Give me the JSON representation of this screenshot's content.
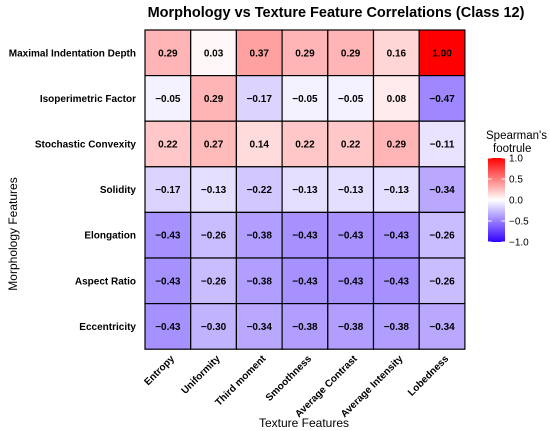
{
  "chart_data": {
    "type": "heatmap",
    "title": "Morphology vs Texture Feature Correlations (Class 12)",
    "xlabel": "Texture Features",
    "ylabel": "Morphology Features",
    "x_categories": [
      "Entropy",
      "Uniformity",
      "Third moment",
      "Smoothness",
      "Average Contrast",
      "Average Intensity",
      "Lobedness"
    ],
    "y_categories": [
      "Maximal Indentation Depth",
      "Isoperimetric Factor",
      "Stochastic Convexity",
      "Solidity",
      "Elongation",
      "Aspect Ratio",
      "Eccentricity"
    ],
    "values": [
      [
        0.29,
        0.03,
        0.37,
        0.29,
        0.29,
        0.16,
        1.0
      ],
      [
        -0.05,
        0.29,
        -0.17,
        -0.05,
        -0.05,
        0.08,
        -0.47
      ],
      [
        0.22,
        0.27,
        0.14,
        0.22,
        0.22,
        0.29,
        -0.11
      ],
      [
        -0.17,
        -0.13,
        -0.22,
        -0.13,
        -0.13,
        -0.13,
        -0.34
      ],
      [
        -0.43,
        -0.26,
        -0.38,
        -0.43,
        -0.43,
        -0.43,
        -0.26
      ],
      [
        -0.43,
        -0.26,
        -0.38,
        -0.43,
        -0.43,
        -0.43,
        -0.26
      ],
      [
        -0.43,
        -0.3,
        -0.34,
        -0.38,
        -0.38,
        -0.38,
        -0.34
      ]
    ],
    "value_labels": [
      [
        "0.29",
        "0.03",
        "0.37",
        "0.29",
        "0.29",
        "0.16",
        "1.00"
      ],
      [
        "−0.05",
        "0.29",
        "−0.17",
        "−0.05",
        "−0.05",
        "0.08",
        "−0.47"
      ],
      [
        "0.22",
        "0.27",
        "0.14",
        "0.22",
        "0.22",
        "0.29",
        "−0.11"
      ],
      [
        "−0.17",
        "−0.13",
        "−0.22",
        "−0.13",
        "−0.13",
        "−0.13",
        "−0.34"
      ],
      [
        "−0.43",
        "−0.26",
        "−0.38",
        "−0.43",
        "−0.43",
        "−0.43",
        "−0.26"
      ],
      [
        "−0.43",
        "−0.26",
        "−0.38",
        "−0.43",
        "−0.43",
        "−0.43",
        "−0.26"
      ],
      [
        "−0.43",
        "−0.30",
        "−0.34",
        "−0.38",
        "−0.38",
        "−0.38",
        "−0.34"
      ]
    ],
    "legend": {
      "title_lines": [
        "Spearman's",
        "footrule"
      ],
      "ticks": [
        1.0,
        0.5,
        0.0,
        -0.5,
        -1.0
      ],
      "tick_labels": [
        "1.0",
        "0.5",
        "0.0",
        "−0.5",
        "−1.0"
      ],
      "range": [
        -1,
        1
      ],
      "placement": "right"
    },
    "colors": {
      "low": "#3300ff",
      "mid": "#ffffff",
      "high": "#ff0000"
    },
    "grid": false
  }
}
